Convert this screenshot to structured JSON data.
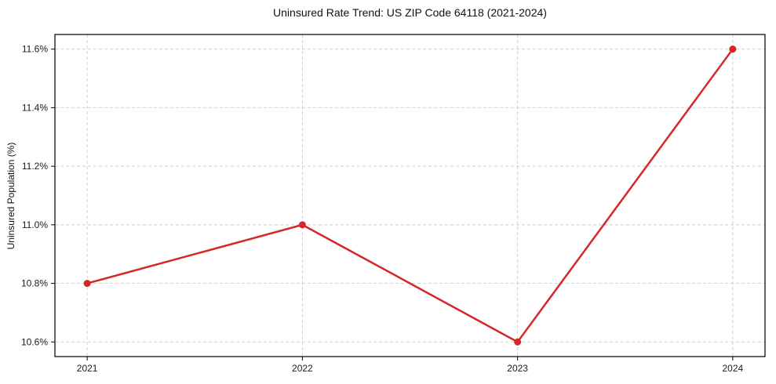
{
  "title": "Uninsured Rate Trend: US ZIP Code 64118 (2021-2024)",
  "y_axis_label": "Uninsured Population (%)",
  "colors": {
    "line": "#d62728",
    "grid": "#cccccc",
    "axis": "#000000",
    "text": "#1a1a1a",
    "background": "#ffffff"
  },
  "chart_data": {
    "type": "line",
    "title": "Uninsured Rate Trend: US ZIP Code 64118 (2021-2024)",
    "xlabel": "",
    "ylabel": "Uninsured Population (%)",
    "x": [
      2021,
      2022,
      2023,
      2024
    ],
    "xtick_labels": [
      "2021",
      "2022",
      "2023",
      "2024"
    ],
    "series": [
      {
        "name": "Uninsured rate",
        "values": [
          10.8,
          11.0,
          10.6,
          11.6
        ],
        "color": "#d62728",
        "marker": "circle"
      }
    ],
    "yticks": [
      10.6,
      10.8,
      11.0,
      11.2,
      11.4,
      11.6
    ],
    "ytick_labels": [
      "10.6%",
      "10.8%",
      "11.0%",
      "11.2%",
      "11.4%",
      "11.6%"
    ],
    "xlim": [
      2020.85,
      2024.15
    ],
    "ylim": [
      10.55,
      11.65
    ],
    "grid": true,
    "grid_style": "dashed",
    "legend": false
  }
}
